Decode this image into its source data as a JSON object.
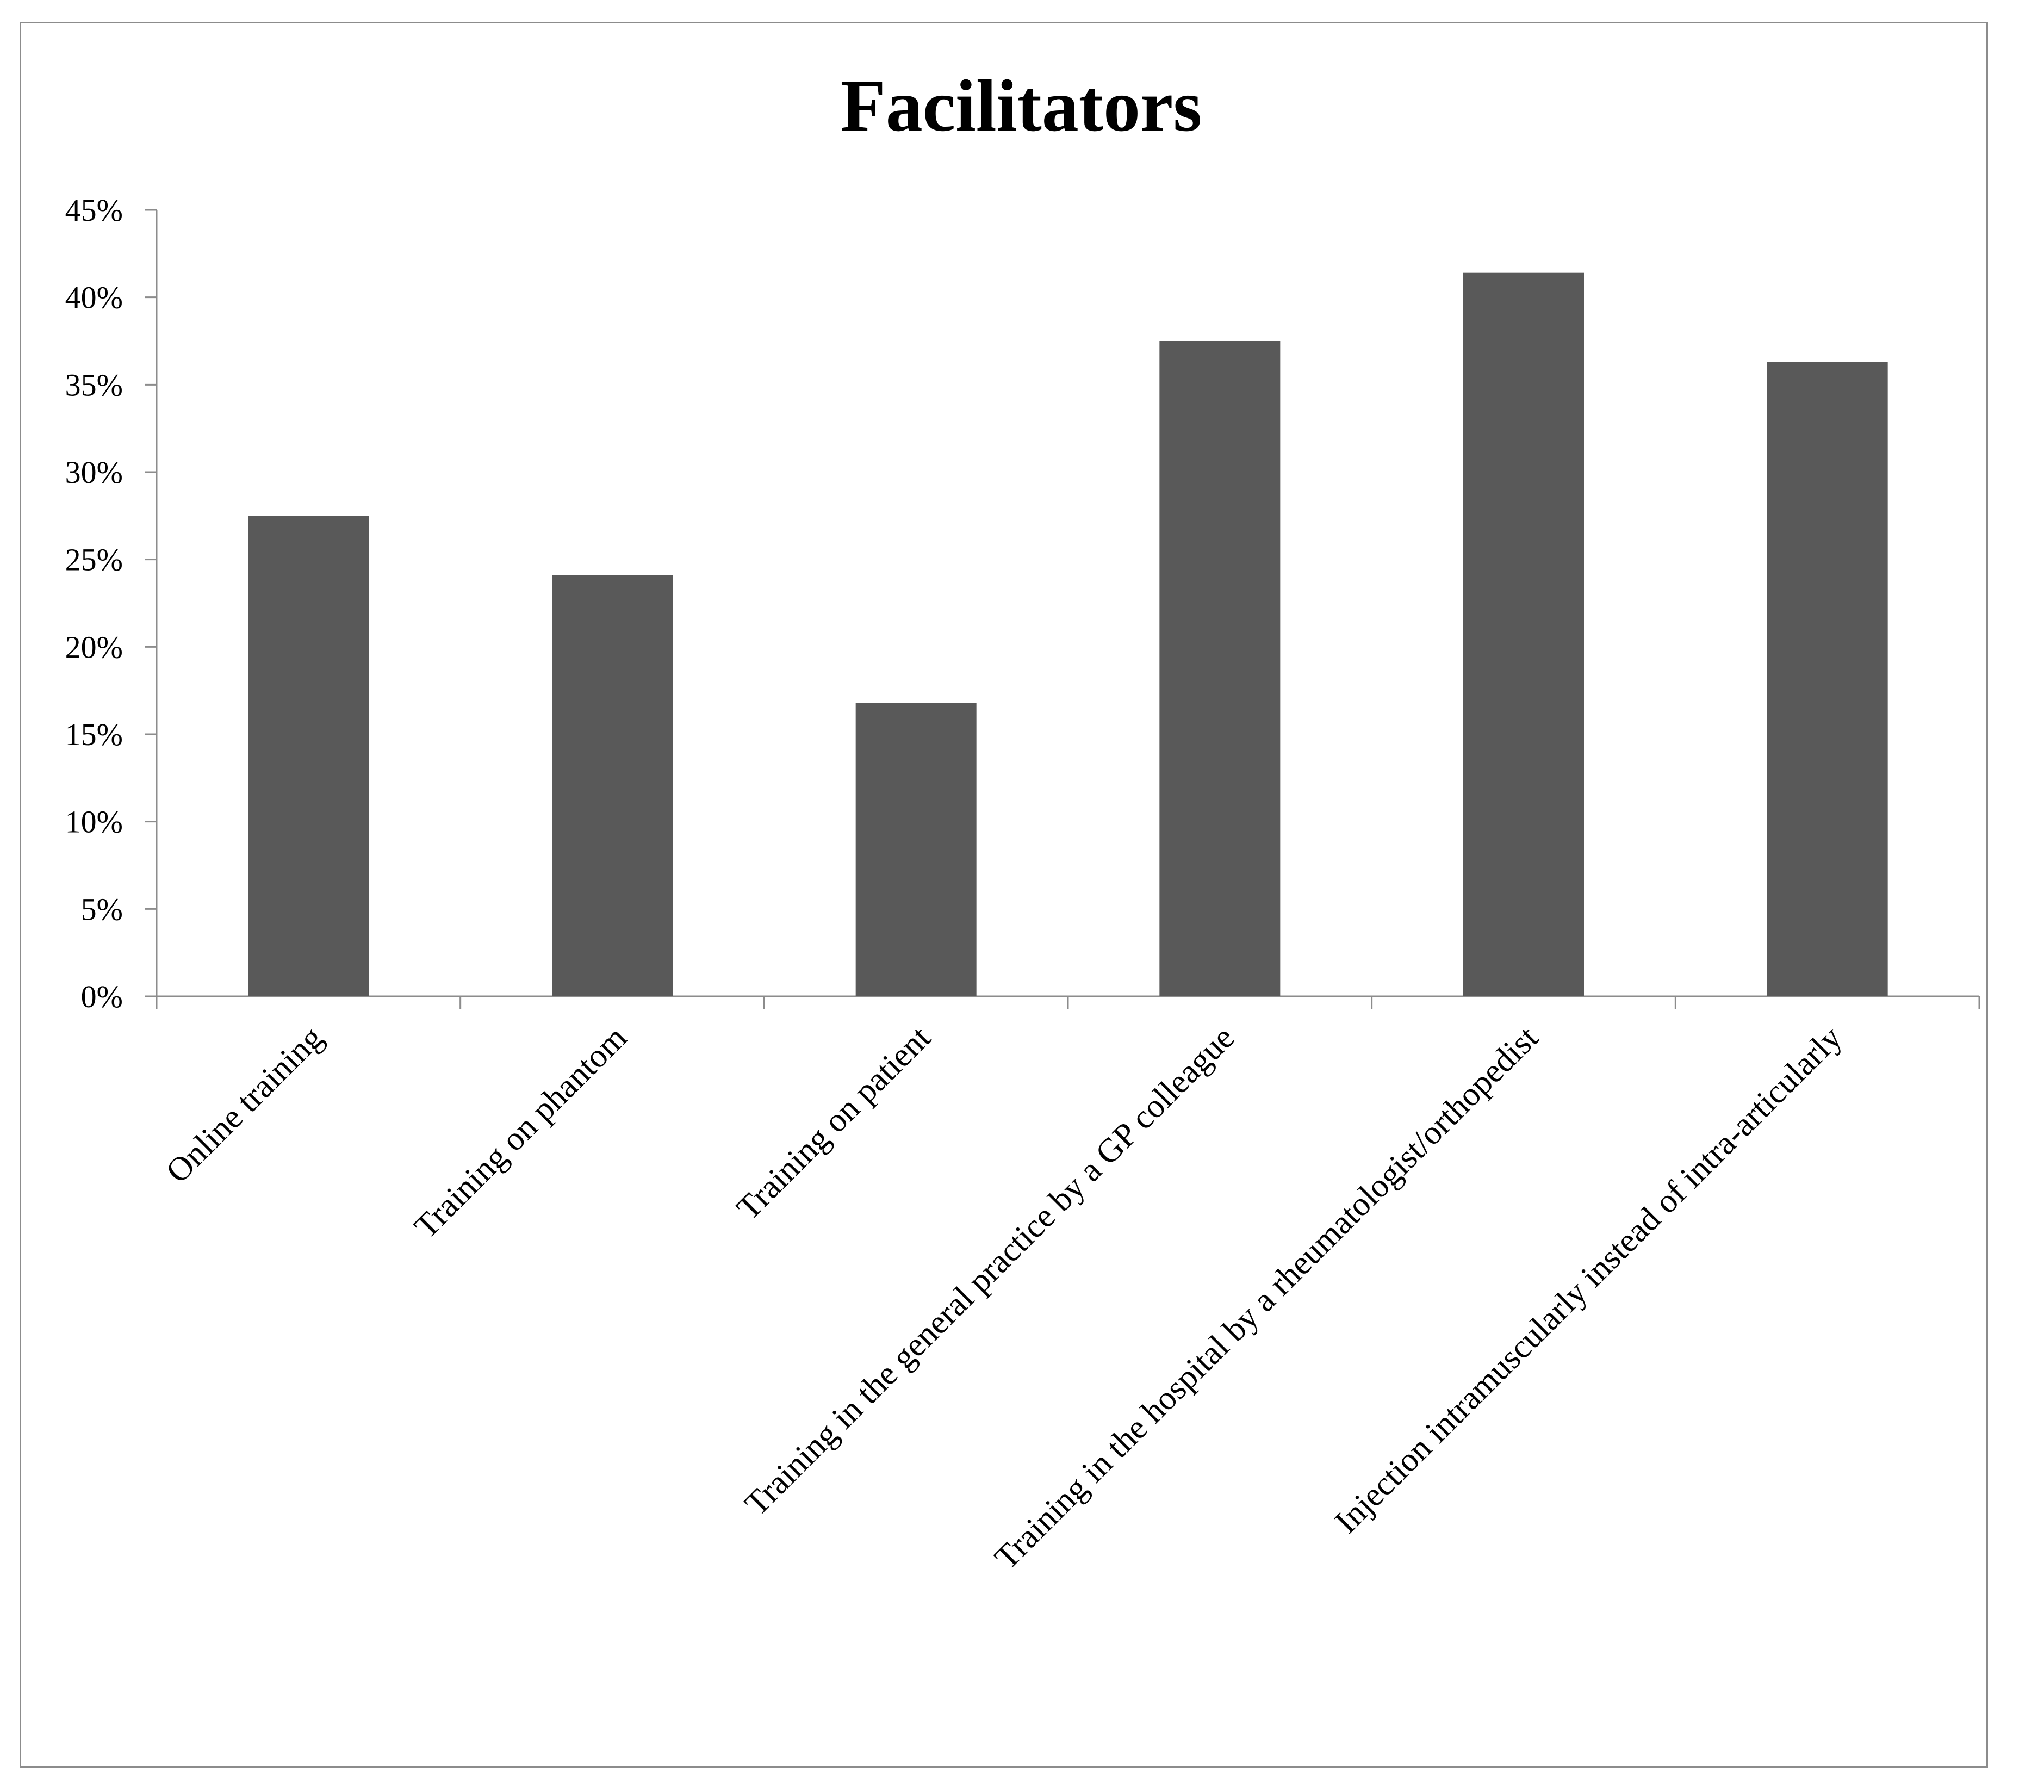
{
  "chart_data": {
    "type": "bar",
    "title": "Facilitators",
    "xlabel": "",
    "ylabel": "",
    "categories": [
      "Online training",
      "Training on phantom",
      "Training on patient",
      "Training in the general practice by a GP colleague",
      "Training in the hospital by a rheumatologist/orthopedist",
      "Injection intramuscularly instead of intra-articularly"
    ],
    "values": [
      27.5,
      24.1,
      16.8,
      37.5,
      41.4,
      36.3
    ],
    "value_format": "percent",
    "ylim": [
      0,
      45
    ],
    "yticks": [
      0,
      5,
      10,
      15,
      20,
      25,
      30,
      35,
      40,
      45
    ],
    "ytick_labels": [
      "0%",
      "5%",
      "10%",
      "15%",
      "20%",
      "25%",
      "30%",
      "35%",
      "40%",
      "45%"
    ],
    "grid": false,
    "legend": "none",
    "bar_color": "#595959",
    "axis_color": "#8c8c8c"
  }
}
